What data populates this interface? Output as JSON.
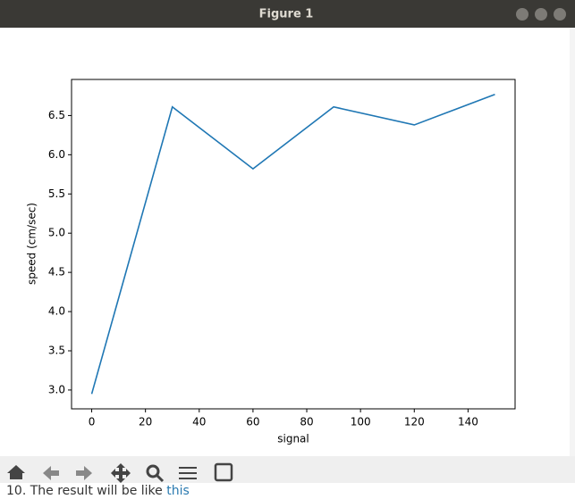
{
  "window": {
    "title": "Figure 1"
  },
  "chart_data": {
    "type": "line",
    "x": [
      0,
      30,
      60,
      90,
      120,
      150
    ],
    "series": [
      {
        "name": "speed",
        "color": "#1f77b4",
        "values": [
          2.95,
          6.61,
          5.82,
          6.61,
          6.38,
          6.77
        ]
      }
    ],
    "xlabel": "signal",
    "ylabel": "speed (cm/sec)",
    "xlim": [
      -7.5,
      157.5
    ],
    "ylim": [
      2.76,
      6.96
    ],
    "xticks": [
      0,
      20,
      40,
      60,
      80,
      100,
      120,
      140
    ],
    "yticks": [
      {
        "value": 3,
        "label": "3.0"
      },
      3.5,
      {
        "value": 4,
        "label": "4.0"
      },
      4.5,
      {
        "value": 5,
        "label": "5.0"
      },
      5.5,
      {
        "value": 6,
        "label": "6.0"
      },
      6.5
    ],
    "grid": false
  },
  "background_text": {
    "text": "10. The result will be like",
    "link": "this"
  }
}
